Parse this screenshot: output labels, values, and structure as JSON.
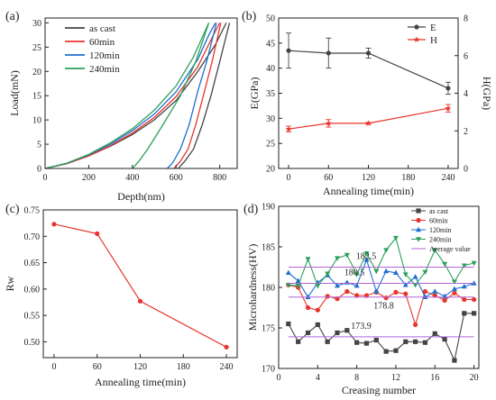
{
  "figure": {
    "panels": [
      {
        "id": "a",
        "label": "(a)"
      },
      {
        "id": "b",
        "label": "(b)"
      },
      {
        "id": "c",
        "label": "(c)"
      },
      {
        "id": "d",
        "label": "(d)"
      }
    ]
  },
  "chart_data": [
    {
      "panel": "(a)",
      "type": "line",
      "title": "",
      "xlabel": "Depth(nm)",
      "ylabel": "Load(mN)",
      "xlim": [
        0,
        880
      ],
      "ylim": [
        0,
        31
      ],
      "xticks": [
        0,
        200,
        400,
        600,
        800
      ],
      "yticks": [
        0,
        5,
        10,
        15,
        20,
        25,
        30
      ],
      "legend": "top-left",
      "series": [
        {
          "name": "as cast",
          "color": "#444444",
          "loading": [
            [
              0,
              0
            ],
            [
              100,
              1.0
            ],
            [
              200,
              2.6
            ],
            [
              300,
              4.6
            ],
            [
              400,
              7.0
            ],
            [
              500,
              10.0
            ],
            [
              600,
              14.0
            ],
            [
              700,
              20.0
            ],
            [
              780,
              25.5
            ],
            [
              830,
              30
            ]
          ],
          "unloading": [
            [
              845,
              30
            ],
            [
              800,
              22
            ],
            [
              760,
              15
            ],
            [
              720,
              9
            ],
            [
              680,
              4
            ],
            [
              640,
              1.5
            ],
            [
              610,
              0
            ]
          ]
        },
        {
          "name": "60min",
          "color": "#e8342c",
          "loading": [
            [
              0,
              0
            ],
            [
              100,
              1.0
            ],
            [
              200,
              2.6
            ],
            [
              300,
              4.7
            ],
            [
              400,
              7.3
            ],
            [
              500,
              10.5
            ],
            [
              600,
              14.8
            ],
            [
              700,
              21.0
            ],
            [
              760,
              26.5
            ],
            [
              800,
              30
            ]
          ],
          "unloading": [
            [
              805,
              30
            ],
            [
              765,
              22
            ],
            [
              725,
              15
            ],
            [
              690,
              9
            ],
            [
              655,
              4
            ],
            [
              620,
              1.5
            ],
            [
              590,
              0
            ]
          ]
        },
        {
          "name": "120min",
          "color": "#1f6fd1",
          "loading": [
            [
              0,
              0
            ],
            [
              100,
              1.1
            ],
            [
              200,
              2.8
            ],
            [
              300,
              5.0
            ],
            [
              400,
              7.8
            ],
            [
              500,
              11.2
            ],
            [
              600,
              15.8
            ],
            [
              700,
              22.5
            ],
            [
              750,
              27.5
            ],
            [
              780,
              30
            ]
          ],
          "unloading": [
            [
              785,
              30
            ],
            [
              740,
              22
            ],
            [
              700,
              16
            ],
            [
              660,
              9
            ],
            [
              620,
              4
            ],
            [
              585,
              1.2
            ],
            [
              560,
              0
            ]
          ]
        },
        {
          "name": "240min",
          "color": "#2ca05a",
          "loading": [
            [
              0,
              0
            ],
            [
              100,
              1.1
            ],
            [
              200,
              2.9
            ],
            [
              300,
              5.3
            ],
            [
              400,
              8.2
            ],
            [
              500,
              12.0
            ],
            [
              600,
              17.0
            ],
            [
              680,
              23.0
            ],
            [
              730,
              28
            ],
            [
              750,
              30
            ]
          ],
          "unloading": [
            [
              750,
              30
            ],
            [
              690,
              22
            ],
            [
              620,
              15
            ],
            [
              540,
              9
            ],
            [
              470,
              4
            ],
            [
              430,
              1.5
            ],
            [
              400,
              0
            ]
          ]
        }
      ]
    },
    {
      "panel": "(b)",
      "type": "line",
      "title": "",
      "xlabel": "Annealing time(min)",
      "ylabel": "E(GPa)",
      "ylabel_right": "H(GPa)",
      "xlim": [
        -15,
        255
      ],
      "ylim": [
        20,
        50
      ],
      "ylim_right": [
        0,
        8
      ],
      "xticks": [
        0,
        60,
        120,
        180,
        240
      ],
      "yticks": [
        20,
        25,
        30,
        35,
        40,
        45,
        50
      ],
      "yticks_right": [
        0,
        2,
        4,
        6,
        8
      ],
      "legend": "top-right",
      "series": [
        {
          "name": "E",
          "color": "#444444",
          "marker": "circle",
          "axis": "left",
          "x": [
            0,
            60,
            120,
            240
          ],
          "y": [
            43.5,
            43.0,
            43.0,
            36.0
          ],
          "err": [
            3.5,
            3.0,
            1.0,
            1.2
          ]
        },
        {
          "name": "H",
          "color": "#e8342c",
          "marker": "star",
          "axis": "right",
          "x": [
            0,
            60,
            120,
            240
          ],
          "y": [
            2.1,
            2.4,
            2.4,
            3.2
          ],
          "err": [
            0.15,
            0.2,
            0.05,
            0.2
          ]
        }
      ]
    },
    {
      "panel": "(c)",
      "type": "line",
      "title": "",
      "xlabel": "Annealing time(min)",
      "ylabel": "Rw",
      "xlim": [
        -15,
        255
      ],
      "ylim": [
        0.47,
        0.75
      ],
      "xticks": [
        0,
        60,
        120,
        180,
        240
      ],
      "yticks": [
        0.5,
        0.55,
        0.6,
        0.65,
        0.7,
        0.75
      ],
      "series": [
        {
          "name": "",
          "color": "#e8342c",
          "marker": "circle",
          "x": [
            0,
            60,
            120,
            240
          ],
          "y": [
            0.723,
            0.705,
            0.577,
            0.49
          ]
        }
      ]
    },
    {
      "panel": "(d)",
      "type": "line",
      "title": "",
      "xlabel": "Creasing number",
      "ylabel": "Microhardness(HV)",
      "xlim": [
        0,
        20.5
      ],
      "ylim": [
        170,
        190
      ],
      "xticks": [
        0,
        4,
        8,
        12,
        16,
        20
      ],
      "yticks": [
        170,
        175,
        180,
        185,
        190
      ],
      "legend": "top-right",
      "series": [
        {
          "name": "as cast",
          "color": "#444444",
          "marker": "square",
          "x": [
            1,
            2,
            3,
            4,
            5,
            6,
            7,
            8,
            9,
            10,
            11,
            12,
            13,
            14,
            15,
            16,
            17,
            18,
            19,
            20
          ],
          "y": [
            175.5,
            173.3,
            174.4,
            175.4,
            173.3,
            174.4,
            174.7,
            173.2,
            173.1,
            173.5,
            172.1,
            172.2,
            173.3,
            173.3,
            173.2,
            174.3,
            173.6,
            171.0,
            176.8,
            176.8
          ]
        },
        {
          "name": "60min",
          "color": "#e8342c",
          "marker": "circle",
          "x": [
            1,
            2,
            3,
            4,
            5,
            6,
            7,
            8,
            9,
            10,
            11,
            12,
            13,
            14,
            15,
            16,
            17,
            18,
            19,
            20
          ],
          "y": [
            180.3,
            180.0,
            177.5,
            177.2,
            178.9,
            178.6,
            179.5,
            179.0,
            179.0,
            179.4,
            178.7,
            179.4,
            179.2,
            175.4,
            179.5,
            179.0,
            178.4,
            179.3,
            178.5,
            178.5
          ]
        },
        {
          "name": "120min",
          "color": "#1f6fd1",
          "marker": "triangle-up",
          "x": [
            1,
            2,
            3,
            4,
            5,
            6,
            7,
            8,
            9,
            10,
            11,
            12,
            13,
            14,
            15,
            16,
            17,
            18,
            19,
            20
          ],
          "y": [
            181.8,
            180.8,
            178.8,
            180.6,
            181.5,
            180.2,
            180.6,
            180.2,
            183.4,
            179.5,
            182.0,
            181.8,
            180.3,
            181.3,
            178.8,
            179.5,
            178.9,
            179.8,
            180.1,
            180.5
          ]
        },
        {
          "name": "240min",
          "color": "#2ca05a",
          "marker": "triangle-down",
          "x": [
            1,
            2,
            3,
            4,
            5,
            6,
            7,
            8,
            9,
            10,
            11,
            12,
            13,
            14,
            15,
            16,
            17,
            18,
            19,
            20
          ],
          "y": [
            180.3,
            180.2,
            183.5,
            180.2,
            181.7,
            183.6,
            184.0,
            181.6,
            184.2,
            182.0,
            184.6,
            186.1,
            181.6,
            180.3,
            181.9,
            184.6,
            182.9,
            180.7,
            182.7,
            183.0
          ]
        },
        {
          "name": "Average value",
          "color": "#b264d6",
          "marker": "none",
          "kind": "hline",
          "levels": [
            173.9,
            178.8,
            180.5,
            182.5
          ]
        }
      ],
      "annotations": [
        {
          "text": "182.5",
          "color": "#2ca05a"
        },
        {
          "text": "180.5",
          "color": "#1f6fd1"
        },
        {
          "text": "178.8",
          "color": "#e8342c"
        },
        {
          "text": "173.9",
          "color": "#444444"
        }
      ]
    }
  ]
}
